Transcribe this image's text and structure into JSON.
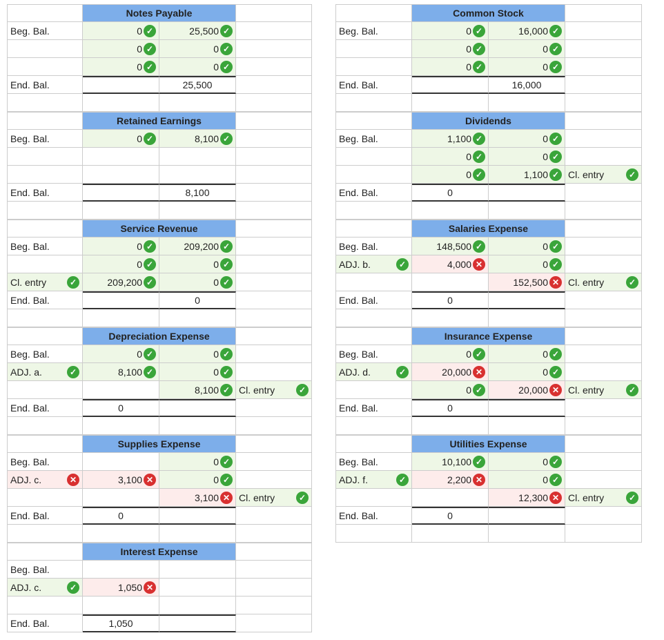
{
  "labels": {
    "beg": "Beg. Bal.",
    "end": "End. Bal.",
    "adj_a": "ADJ. a.",
    "adj_b": "ADJ. b.",
    "adj_c": "ADJ. c.",
    "adj_d": "ADJ. d.",
    "adj_f": "ADJ. f.",
    "cl": "Cl. entry"
  },
  "accounts": {
    "notes_payable": {
      "title": "Notes Payable",
      "debits": [
        "0",
        "0",
        "0"
      ],
      "credits": [
        "25,500",
        "0",
        "0"
      ],
      "end_credit": "25,500"
    },
    "common_stock": {
      "title": "Common Stock",
      "debits": [
        "0",
        "0",
        "0"
      ],
      "credits": [
        "16,000",
        "0",
        "0"
      ],
      "end_credit": "16,000"
    },
    "retained_earnings": {
      "title": "Retained Earnings",
      "debits": [
        "0"
      ],
      "credits": [
        "8,100"
      ],
      "end_credit": "8,100"
    },
    "dividends": {
      "title": "Dividends",
      "debits": [
        "1,100",
        "0",
        "0"
      ],
      "credits": [
        "0",
        "0",
        "1,100"
      ],
      "end_debit": "0"
    },
    "service_revenue": {
      "title": "Service Revenue",
      "debits": [
        "0",
        "0",
        "209,200"
      ],
      "credits": [
        "209,200",
        "0",
        "0"
      ],
      "end_credit": "0"
    },
    "salaries_expense": {
      "title": "Salaries Expense",
      "debits": [
        "148,500",
        "4,000"
      ],
      "credits": [
        "0",
        "0",
        "152,500"
      ],
      "end_debit": "0"
    },
    "depreciation_expense": {
      "title": "Depreciation Expense",
      "debits": [
        "0",
        "8,100"
      ],
      "credits": [
        "0",
        "0",
        "8,100"
      ],
      "end_debit": "0"
    },
    "insurance_expense": {
      "title": "Insurance Expense",
      "debits": [
        "0",
        "20,000",
        "0"
      ],
      "credits": [
        "0",
        "0",
        "20,000"
      ],
      "end_debit": "0"
    },
    "supplies_expense": {
      "title": "Supplies Expense",
      "debits": [
        "3,100"
      ],
      "credits": [
        "0",
        "0",
        "3,100"
      ],
      "end_debit": "0"
    },
    "utilities_expense": {
      "title": "Utilities Expense",
      "debits": [
        "10,100",
        "2,200"
      ],
      "credits": [
        "0",
        "0",
        "12,300"
      ],
      "end_debit": "0"
    },
    "interest_expense": {
      "title": "Interest Expense",
      "debits": [
        "1,050"
      ],
      "end_debit": "1,050"
    }
  },
  "colors": {
    "header": "#7daeea",
    "correct": "#3aa53a",
    "incorrect": "#d83030"
  }
}
